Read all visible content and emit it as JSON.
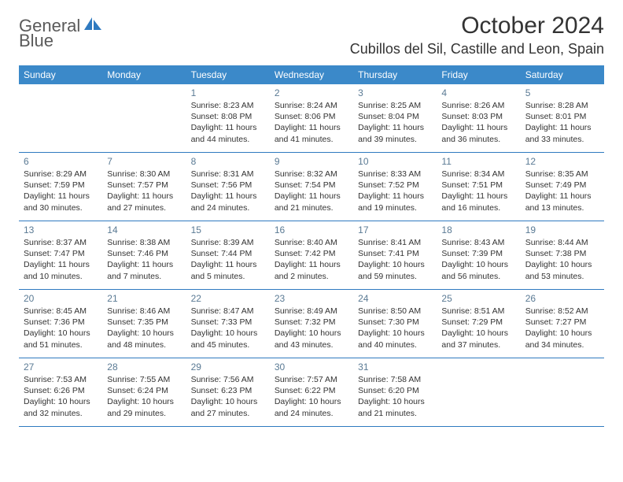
{
  "logo": {
    "part1": "General",
    "part2": "Blue"
  },
  "title": "October 2024",
  "location": "Cubillos del Sil, Castille and Leon, Spain",
  "colors": {
    "header_bg": "#3b89c9",
    "accent": "#2f7ac0",
    "daynum": "#5a7a94",
    "text": "#333333",
    "bg": "#ffffff"
  },
  "dow": [
    "Sunday",
    "Monday",
    "Tuesday",
    "Wednesday",
    "Thursday",
    "Friday",
    "Saturday"
  ],
  "weeks": [
    [
      null,
      null,
      {
        "n": "1",
        "sr": "8:23 AM",
        "ss": "8:08 PM",
        "dl": "11 hours and 44 minutes."
      },
      {
        "n": "2",
        "sr": "8:24 AM",
        "ss": "8:06 PM",
        "dl": "11 hours and 41 minutes."
      },
      {
        "n": "3",
        "sr": "8:25 AM",
        "ss": "8:04 PM",
        "dl": "11 hours and 39 minutes."
      },
      {
        "n": "4",
        "sr": "8:26 AM",
        "ss": "8:03 PM",
        "dl": "11 hours and 36 minutes."
      },
      {
        "n": "5",
        "sr": "8:28 AM",
        "ss": "8:01 PM",
        "dl": "11 hours and 33 minutes."
      }
    ],
    [
      {
        "n": "6",
        "sr": "8:29 AM",
        "ss": "7:59 PM",
        "dl": "11 hours and 30 minutes."
      },
      {
        "n": "7",
        "sr": "8:30 AM",
        "ss": "7:57 PM",
        "dl": "11 hours and 27 minutes."
      },
      {
        "n": "8",
        "sr": "8:31 AM",
        "ss": "7:56 PM",
        "dl": "11 hours and 24 minutes."
      },
      {
        "n": "9",
        "sr": "8:32 AM",
        "ss": "7:54 PM",
        "dl": "11 hours and 21 minutes."
      },
      {
        "n": "10",
        "sr": "8:33 AM",
        "ss": "7:52 PM",
        "dl": "11 hours and 19 minutes."
      },
      {
        "n": "11",
        "sr": "8:34 AM",
        "ss": "7:51 PM",
        "dl": "11 hours and 16 minutes."
      },
      {
        "n": "12",
        "sr": "8:35 AM",
        "ss": "7:49 PM",
        "dl": "11 hours and 13 minutes."
      }
    ],
    [
      {
        "n": "13",
        "sr": "8:37 AM",
        "ss": "7:47 PM",
        "dl": "11 hours and 10 minutes."
      },
      {
        "n": "14",
        "sr": "8:38 AM",
        "ss": "7:46 PM",
        "dl": "11 hours and 7 minutes."
      },
      {
        "n": "15",
        "sr": "8:39 AM",
        "ss": "7:44 PM",
        "dl": "11 hours and 5 minutes."
      },
      {
        "n": "16",
        "sr": "8:40 AM",
        "ss": "7:42 PM",
        "dl": "11 hours and 2 minutes."
      },
      {
        "n": "17",
        "sr": "8:41 AM",
        "ss": "7:41 PM",
        "dl": "10 hours and 59 minutes."
      },
      {
        "n": "18",
        "sr": "8:43 AM",
        "ss": "7:39 PM",
        "dl": "10 hours and 56 minutes."
      },
      {
        "n": "19",
        "sr": "8:44 AM",
        "ss": "7:38 PM",
        "dl": "10 hours and 53 minutes."
      }
    ],
    [
      {
        "n": "20",
        "sr": "8:45 AM",
        "ss": "7:36 PM",
        "dl": "10 hours and 51 minutes."
      },
      {
        "n": "21",
        "sr": "8:46 AM",
        "ss": "7:35 PM",
        "dl": "10 hours and 48 minutes."
      },
      {
        "n": "22",
        "sr": "8:47 AM",
        "ss": "7:33 PM",
        "dl": "10 hours and 45 minutes."
      },
      {
        "n": "23",
        "sr": "8:49 AM",
        "ss": "7:32 PM",
        "dl": "10 hours and 43 minutes."
      },
      {
        "n": "24",
        "sr": "8:50 AM",
        "ss": "7:30 PM",
        "dl": "10 hours and 40 minutes."
      },
      {
        "n": "25",
        "sr": "8:51 AM",
        "ss": "7:29 PM",
        "dl": "10 hours and 37 minutes."
      },
      {
        "n": "26",
        "sr": "8:52 AM",
        "ss": "7:27 PM",
        "dl": "10 hours and 34 minutes."
      }
    ],
    [
      {
        "n": "27",
        "sr": "7:53 AM",
        "ss": "6:26 PM",
        "dl": "10 hours and 32 minutes."
      },
      {
        "n": "28",
        "sr": "7:55 AM",
        "ss": "6:24 PM",
        "dl": "10 hours and 29 minutes."
      },
      {
        "n": "29",
        "sr": "7:56 AM",
        "ss": "6:23 PM",
        "dl": "10 hours and 27 minutes."
      },
      {
        "n": "30",
        "sr": "7:57 AM",
        "ss": "6:22 PM",
        "dl": "10 hours and 24 minutes."
      },
      {
        "n": "31",
        "sr": "7:58 AM",
        "ss": "6:20 PM",
        "dl": "10 hours and 21 minutes."
      },
      null,
      null
    ]
  ],
  "labels": {
    "sunrise": "Sunrise:",
    "sunset": "Sunset:",
    "daylight": "Daylight:"
  }
}
